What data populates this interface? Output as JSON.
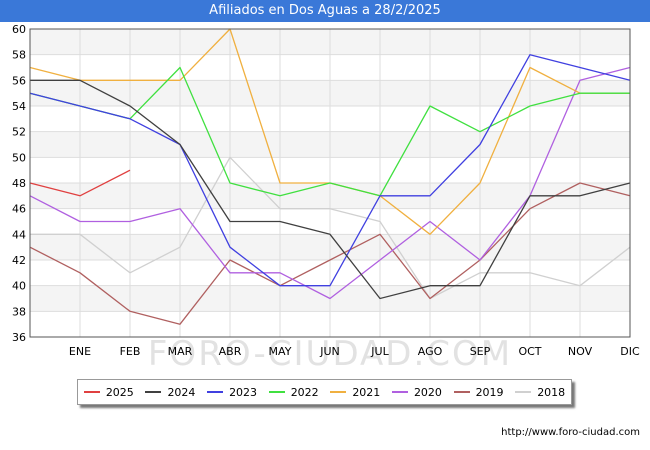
{
  "page": {
    "title": "Afiliados en Dos Aguas a 28/2/2025",
    "source_url": "http://www.foro-ciudad.com",
    "watermark": "FORO-CIUDAD.COM"
  },
  "chart_data": {
    "type": "line",
    "title": "Afiliados en Dos Aguas a 28/2/2025",
    "categories": [
      "",
      "ENE",
      "FEB",
      "MAR",
      "ABR",
      "MAY",
      "JUN",
      "JUL",
      "AGO",
      "SEP",
      "OCT",
      "NOV",
      "DIC"
    ],
    "ylim": [
      36,
      60
    ],
    "yticks": [
      36,
      38,
      40,
      42,
      44,
      46,
      48,
      50,
      52,
      54,
      56,
      58,
      60
    ],
    "grid": true,
    "legend_position": "bottom",
    "series": [
      {
        "name": "2018",
        "color": "#d0d0d0",
        "values": [
          44,
          44,
          41,
          43,
          50,
          46,
          46,
          45,
          39,
          41,
          41,
          40,
          43
        ]
      },
      {
        "name": "2019",
        "color": "#b06060",
        "values": [
          43,
          41,
          38,
          37,
          42,
          40,
          42,
          44,
          39,
          42,
          46,
          48,
          47
        ]
      },
      {
        "name": "2020",
        "color": "#b060e0",
        "values": [
          47,
          45,
          45,
          46,
          41,
          41,
          39,
          42,
          45,
          42,
          47,
          56,
          57
        ]
      },
      {
        "name": "2021",
        "color": "#f0b040",
        "values": [
          57,
          56,
          56,
          56,
          60,
          48,
          48,
          47,
          44,
          48,
          57,
          55,
          55
        ]
      },
      {
        "name": "2022",
        "color": "#40e040",
        "values": [
          55,
          54,
          53,
          57,
          48,
          47,
          48,
          47,
          54,
          52,
          54,
          55,
          55
        ]
      },
      {
        "name": "2023",
        "color": "#4040e0",
        "values": [
          55,
          54,
          53,
          51,
          43,
          40,
          40,
          47,
          47,
          51,
          58,
          57,
          56
        ]
      },
      {
        "name": "2024",
        "color": "#404040",
        "values": [
          56,
          56,
          54,
          51,
          45,
          45,
          44,
          39,
          40,
          40,
          47,
          47,
          48
        ]
      },
      {
        "name": "2025",
        "color": "#e04040",
        "values": [
          48,
          47,
          49,
          null,
          null,
          null,
          null,
          null,
          null,
          null,
          null,
          null,
          null
        ]
      }
    ]
  },
  "legend": [
    {
      "label": "2025",
      "color": "#e04040"
    },
    {
      "label": "2024",
      "color": "#404040"
    },
    {
      "label": "2023",
      "color": "#4040e0"
    },
    {
      "label": "2022",
      "color": "#40e040"
    },
    {
      "label": "2021",
      "color": "#f0b040"
    },
    {
      "label": "2020",
      "color": "#b060e0"
    },
    {
      "label": "2019",
      "color": "#b06060"
    },
    {
      "label": "2018",
      "color": "#d0d0d0"
    }
  ]
}
